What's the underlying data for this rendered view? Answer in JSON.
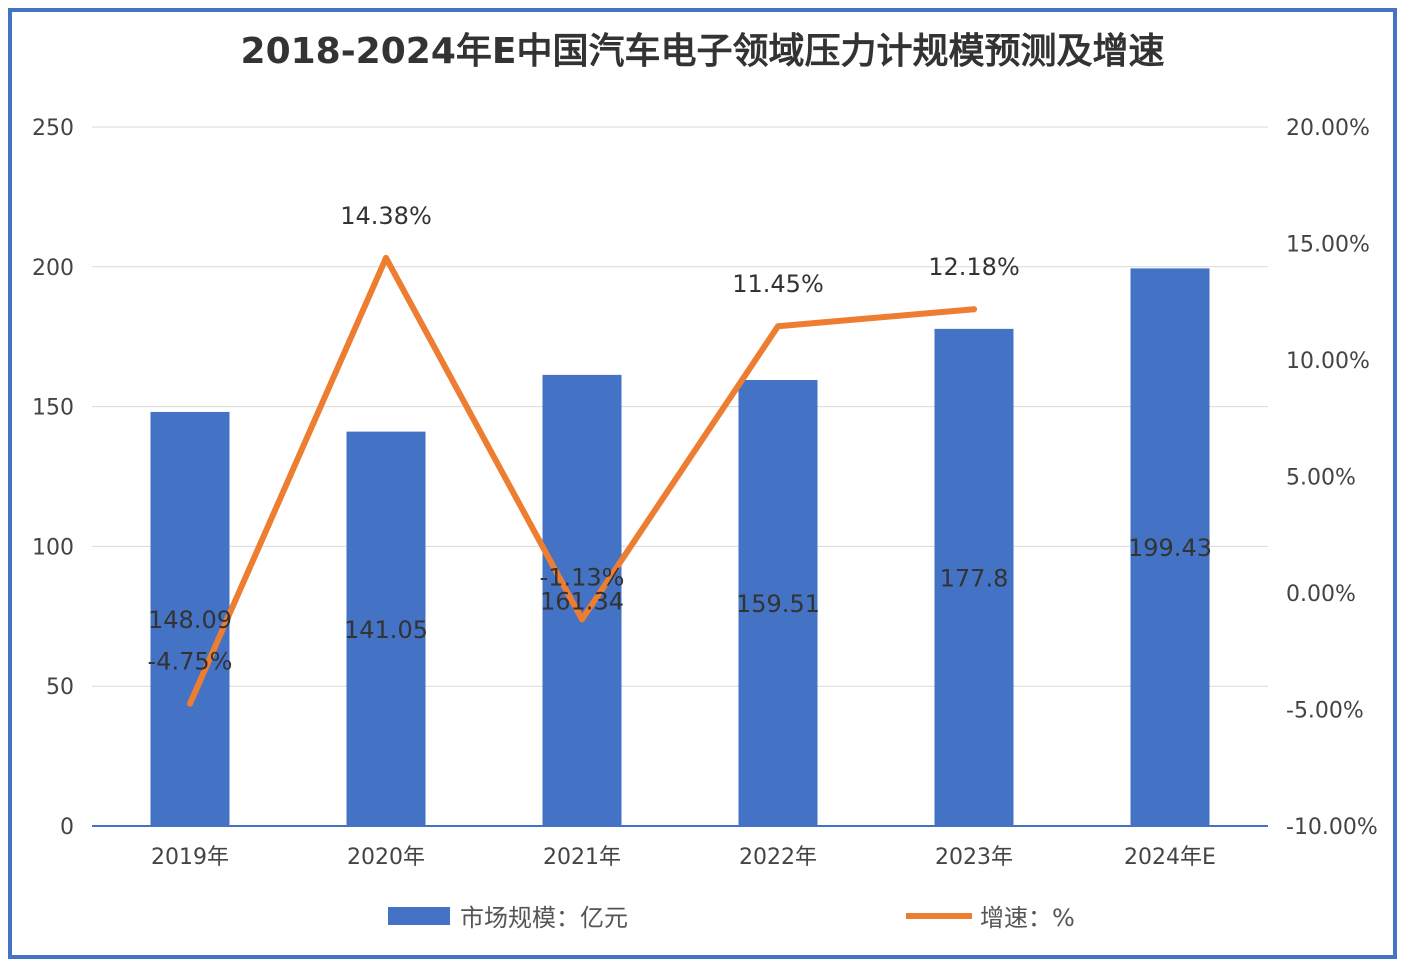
{
  "chart_data": {
    "type": "bar+line",
    "title": "2018-2024年E中国汽车电子领域压力计规模预测及增速",
    "categories": [
      "2019年",
      "2020年",
      "2021年",
      "2022年",
      "2023年",
      "2024年E"
    ],
    "series": [
      {
        "name": "市场规模：亿元",
        "type": "bar",
        "axis": "left",
        "color": "#4472C4",
        "values": [
          148.09,
          141.05,
          161.34,
          159.51,
          177.8,
          199.43
        ],
        "labels": [
          "148.09",
          "141.05",
          "161.34",
          "159.51",
          "177.8",
          "199.43"
        ]
      },
      {
        "name": "增速：%",
        "type": "line",
        "axis": "right",
        "color": "#ED7D31",
        "values": [
          -4.75,
          14.38,
          -1.13,
          11.45,
          12.18,
          null
        ],
        "labels": [
          "-4.75%",
          "14.38%",
          "-1.13%",
          "11.45%",
          "12.18%",
          ""
        ]
      }
    ],
    "left_axis": {
      "ylim": [
        0,
        250
      ],
      "ticks": [
        "0",
        "50",
        "100",
        "150",
        "200",
        "250"
      ]
    },
    "right_axis": {
      "ylim": [
        -10,
        20
      ],
      "ticks": [
        "-10.00%",
        "-5.00%",
        "0.00%",
        "5.00%",
        "10.00%",
        "15.00%",
        "20.00%"
      ]
    },
    "grid": true,
    "legend_placement": "bottom"
  }
}
